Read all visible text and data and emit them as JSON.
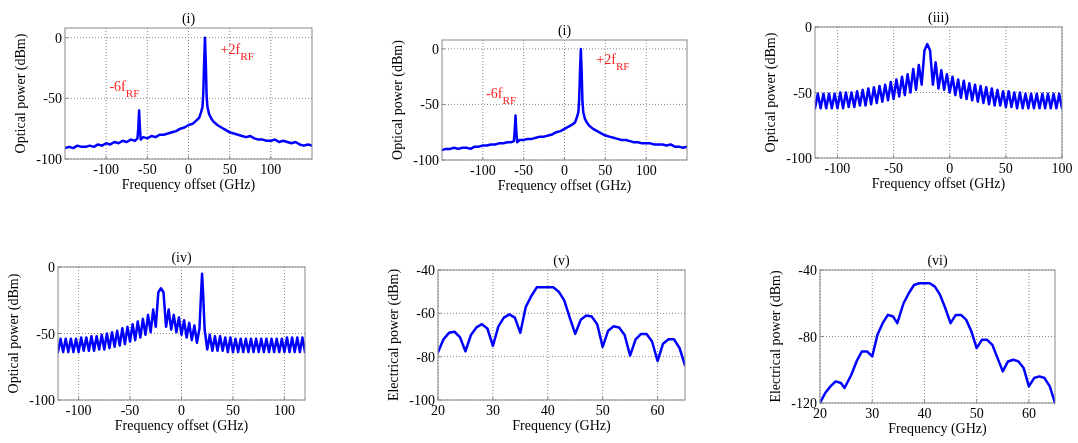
{
  "chart_data": [
    {
      "type": "line",
      "title": "(i)",
      "xlabel": "Frequency offset (GHz)",
      "ylabel": "Optical power (dBm)",
      "xlim": [
        -150,
        150
      ],
      "ylim": [
        -100,
        8
      ],
      "xticks": [
        -100,
        -50,
        0,
        50,
        100
      ],
      "yticks": [
        -100,
        -50,
        0
      ],
      "grid": true,
      "annotations": [
        "-6f$_{RF}$",
        "+2f$_{RF}$"
      ],
      "series": [
        {
          "color": "#0000ff",
          "x": [
            -150,
            -145,
            -140,
            -135,
            -130,
            -125,
            -120,
            -115,
            -110,
            -105,
            -100,
            -95,
            -90,
            -85,
            -80,
            -75,
            -70,
            -65,
            -62,
            -61,
            -60,
            -59,
            -58,
            -55,
            -50,
            -45,
            -40,
            -35,
            -30,
            -25,
            -20,
            -15,
            -10,
            -5,
            0,
            5,
            10,
            13,
            15,
            17,
            18,
            19,
            20,
            21,
            22,
            23,
            25,
            28,
            30,
            35,
            40,
            45,
            50,
            55,
            60,
            65,
            70,
            75,
            80,
            85,
            90,
            95,
            100,
            105,
            110,
            115,
            120,
            125,
            130,
            135,
            140,
            145,
            150
          ],
          "values": [
            -91,
            -90,
            -91,
            -89,
            -90,
            -90,
            -89,
            -90,
            -88,
            -89,
            -87,
            -88,
            -86,
            -87,
            -85,
            -86,
            -84,
            -85,
            -83,
            -75,
            -60,
            -75,
            -84,
            -82,
            -83,
            -81,
            -82,
            -80,
            -80,
            -79,
            -78,
            -77,
            -75,
            -74,
            -72,
            -71,
            -68,
            -66,
            -62,
            -57,
            -45,
            -20,
            0,
            -20,
            -48,
            -57,
            -63,
            -67,
            -69,
            -72,
            -74,
            -76,
            -78,
            -79,
            -80,
            -81,
            -82,
            -81,
            -83,
            -84,
            -84,
            -85,
            -85,
            -84,
            -86,
            -85,
            -86,
            -87,
            -86,
            -88,
            -89,
            -88,
            -89
          ]
        }
      ]
    },
    {
      "type": "line",
      "title": "(i)",
      "xlabel": "Frequency offset (GHz)",
      "ylabel": "Optical power (dBm)",
      "xlim": [
        -150,
        150
      ],
      "ylim": [
        -100,
        8
      ],
      "xticks": [
        -100,
        -50,
        0,
        50,
        100
      ],
      "yticks": [
        -100,
        -50,
        0
      ],
      "grid": true,
      "annotations": [
        "-6f$_{RF}$",
        "+2f$_{RF}$"
      ],
      "series": [
        {
          "color": "#0000ff",
          "x": [
            -150,
            -145,
            -140,
            -135,
            -130,
            -125,
            -120,
            -115,
            -110,
            -105,
            -100,
            -95,
            -90,
            -85,
            -80,
            -75,
            -70,
            -65,
            -62,
            -61,
            -60,
            -59,
            -58,
            -55,
            -50,
            -45,
            -40,
            -35,
            -30,
            -25,
            -20,
            -15,
            -10,
            -5,
            0,
            5,
            10,
            13,
            15,
            17,
            18,
            19,
            20,
            21,
            22,
            23,
            25,
            28,
            30,
            35,
            40,
            45,
            50,
            55,
            60,
            65,
            70,
            75,
            80,
            85,
            90,
            95,
            100,
            105,
            110,
            115,
            120,
            125,
            130,
            135,
            140,
            145,
            150
          ],
          "values": [
            -91,
            -90,
            -90,
            -89,
            -90,
            -89,
            -89,
            -90,
            -88,
            -88,
            -87,
            -87,
            -86,
            -86,
            -85,
            -85,
            -84,
            -84,
            -83,
            -74,
            -60,
            -74,
            -84,
            -82,
            -82,
            -81,
            -81,
            -80,
            -79,
            -79,
            -78,
            -77,
            -75,
            -74,
            -72,
            -70,
            -68,
            -66,
            -62,
            -57,
            -45,
            -20,
            0,
            -20,
            -48,
            -57,
            -63,
            -67,
            -69,
            -72,
            -74,
            -76,
            -78,
            -79,
            -80,
            -81,
            -82,
            -82,
            -83,
            -84,
            -84,
            -85,
            -85,
            -85,
            -86,
            -86,
            -86,
            -87,
            -86,
            -88,
            -88,
            -89,
            -88
          ]
        }
      ]
    },
    {
      "type": "line",
      "title": "(iii)",
      "xlabel": "Frequency offset (GHz)",
      "ylabel": "Optical power (dBm)",
      "xlim": [
        -120,
        100
      ],
      "ylim": [
        -100,
        0
      ],
      "xticks": [
        -100,
        -50,
        0,
        50,
        100
      ],
      "yticks": [
        -100,
        -50,
        0
      ],
      "grid": true,
      "series": [
        {
          "color": "#0000ff",
          "x": [
            -120,
            -117.5,
            -115,
            -112.5,
            -110,
            -107.5,
            -105,
            -102.5,
            -100,
            -97.5,
            -95,
            -92.5,
            -90,
            -87.5,
            -85,
            -82.5,
            -80,
            -77.5,
            -75,
            -72.5,
            -70,
            -67.5,
            -65,
            -62.5,
            -60,
            -57.5,
            -55,
            -52.5,
            -50,
            -47.5,
            -45,
            -42.5,
            -40,
            -37.5,
            -35,
            -32.5,
            -30,
            -27.5,
            -25,
            -22.5,
            -20,
            -17.5,
            -15,
            -12.5,
            -10,
            -7.5,
            -5,
            -2.5,
            0,
            2.5,
            5,
            7.5,
            10,
            12.5,
            15,
            17.5,
            20,
            22.5,
            25,
            27.5,
            30,
            32.5,
            35,
            37.5,
            40,
            42.5,
            45,
            47.5,
            50,
            52.5,
            55,
            57.5,
            60,
            62.5,
            65,
            67.5,
            70,
            72.5,
            75,
            77.5,
            80,
            82.5,
            85,
            87.5,
            90,
            92.5,
            95,
            97.5,
            100
          ],
          "values": [
            -62,
            -51,
            -62,
            -51,
            -62,
            -51,
            -62,
            -51,
            -62,
            -50,
            -62,
            -50,
            -61,
            -50,
            -61,
            -49,
            -60,
            -48,
            -60,
            -47,
            -59,
            -46,
            -58,
            -45,
            -57,
            -44,
            -56,
            -42,
            -55,
            -40,
            -53,
            -38,
            -52,
            -36,
            -50,
            -32,
            -48,
            -29,
            -44,
            -18,
            -13,
            -18,
            -44,
            -27,
            -47,
            -33,
            -48,
            -36,
            -50,
            -38,
            -52,
            -40,
            -54,
            -41,
            -55,
            -43,
            -56,
            -44,
            -57,
            -45,
            -58,
            -46,
            -59,
            -47,
            -60,
            -48,
            -60,
            -49,
            -61,
            -49,
            -61,
            -50,
            -62,
            -50,
            -62,
            -51,
            -62,
            -51,
            -62,
            -51,
            -62,
            -51,
            -62,
            -51,
            -62,
            -51,
            -62,
            -51,
            -62
          ]
        }
      ]
    },
    {
      "type": "line",
      "title": "(iv)",
      "xlabel": "Frequency offset (GHz)",
      "ylabel": "Optical power (dBm)",
      "xlim": [
        -120,
        120
      ],
      "ylim": [
        -100,
        0
      ],
      "xticks": [
        -100,
        -50,
        0,
        50,
        100
      ],
      "yticks": [
        -100,
        -50,
        0
      ],
      "grid": true,
      "series": [
        {
          "color": "#0000ff",
          "x": [
            -120,
            -117.5,
            -115,
            -112.5,
            -110,
            -107.5,
            -105,
            -102.5,
            -100,
            -97.5,
            -95,
            -92.5,
            -90,
            -87.5,
            -85,
            -82.5,
            -80,
            -77.5,
            -75,
            -72.5,
            -70,
            -67.5,
            -65,
            -62.5,
            -60,
            -57.5,
            -55,
            -52.5,
            -50,
            -47.5,
            -45,
            -42.5,
            -40,
            -37.5,
            -35,
            -32.5,
            -30,
            -27.5,
            -25,
            -22.5,
            -20,
            -17.5,
            -15,
            -12.5,
            -10,
            -7.5,
            -5,
            -2.5,
            0,
            2.5,
            5,
            7.5,
            10,
            12.5,
            15,
            17.5,
            19,
            20,
            21,
            22.5,
            25,
            27.5,
            30,
            32.5,
            35,
            37.5,
            40,
            42.5,
            45,
            47.5,
            50,
            52.5,
            55,
            57.5,
            60,
            62.5,
            65,
            67.5,
            70,
            72.5,
            75,
            77.5,
            80,
            82.5,
            85,
            87.5,
            90,
            92.5,
            95,
            97.5,
            100,
            102.5,
            105,
            107.5,
            110,
            112.5,
            115,
            117.5,
            120
          ],
          "values": [
            -64,
            -54,
            -64,
            -54,
            -64,
            -54,
            -64,
            -54,
            -64,
            -53,
            -63,
            -53,
            -63,
            -52,
            -63,
            -52,
            -62,
            -51,
            -62,
            -50,
            -61,
            -49,
            -60,
            -48,
            -59,
            -46,
            -58,
            -45,
            -56,
            -43,
            -55,
            -41,
            -53,
            -39,
            -51,
            -36,
            -49,
            -32,
            -45,
            -19,
            -16,
            -19,
            -45,
            -32,
            -47,
            -36,
            -49,
            -38,
            -51,
            -40,
            -53,
            -42,
            -55,
            -44,
            -57,
            -46,
            -20,
            -5,
            -20,
            -47,
            -62,
            -51,
            -63,
            -52,
            -63,
            -52,
            -63,
            -53,
            -64,
            -53,
            -64,
            -54,
            -64,
            -54,
            -64,
            -54,
            -64,
            -54,
            -64,
            -54,
            -64,
            -54,
            -64,
            -54,
            -64,
            -54,
            -64,
            -54,
            -64,
            -54,
            -64,
            -53,
            -64,
            -53,
            -64,
            -53,
            -64,
            -53,
            -64
          ]
        }
      ]
    },
    {
      "type": "line",
      "title": "(v)",
      "xlabel": "Frequency (GHz)",
      "ylabel": "Electrical power (dBm)",
      "xlim": [
        20,
        65
      ],
      "ylim": [
        -100,
        -40
      ],
      "xticks": [
        20,
        30,
        40,
        50,
        60
      ],
      "yticks": [
        -100,
        -80,
        -60,
        -40
      ],
      "grid": true,
      "series": [
        {
          "color": "#0000ff",
          "x": [
            20,
            21,
            22,
            23,
            24,
            25,
            26,
            27,
            28,
            29,
            30,
            31,
            32,
            33,
            34,
            35,
            36,
            37,
            38,
            39,
            40,
            41,
            42,
            43,
            44,
            45,
            46,
            47,
            48,
            49,
            50,
            51,
            52,
            53,
            54,
            55,
            56,
            57,
            58,
            59,
            60,
            61,
            62,
            63,
            64,
            65
          ],
          "values": [
            -78,
            -72,
            -69,
            -68.5,
            -71,
            -77.5,
            -70,
            -66.5,
            -65,
            -67,
            -75,
            -66,
            -62,
            -60.5,
            -62,
            -69,
            -57,
            -52,
            -48,
            -48,
            -48,
            -48,
            -50,
            -54,
            -62,
            -69.5,
            -63,
            -61,
            -61.5,
            -65,
            -75.5,
            -68,
            -66,
            -66.5,
            -70,
            -79.5,
            -72,
            -69.5,
            -69.5,
            -73,
            -82,
            -74,
            -72,
            -72,
            -76,
            -84
          ]
        }
      ]
    },
    {
      "type": "line",
      "title": "(vi)",
      "xlabel": "Frequency (GHz)",
      "ylabel": "Electrical power (dBm)",
      "xlim": [
        20,
        65
      ],
      "ylim": [
        -120,
        -40
      ],
      "xticks": [
        20,
        30,
        40,
        50,
        60
      ],
      "yticks": [
        -120,
        -80,
        -40
      ],
      "grid": true,
      "series": [
        {
          "color": "#0000ff",
          "x": [
            20,
            21,
            22,
            23,
            24,
            24.7,
            26,
            27,
            28,
            29,
            30,
            31,
            32,
            33,
            34,
            34.8,
            36,
            37,
            38,
            39,
            40,
            41,
            42,
            43,
            44,
            45,
            46,
            47,
            48,
            49,
            50,
            51,
            52,
            53,
            54,
            55,
            56,
            57,
            58,
            59,
            60,
            61,
            62,
            63,
            64,
            65
          ],
          "values": [
            -120,
            -114,
            -110,
            -107,
            -108,
            -111,
            -103,
            -95,
            -89,
            -89,
            -92,
            -79,
            -72,
            -67,
            -68,
            -72,
            -60,
            -54,
            -49,
            -48,
            -48,
            -48,
            -50,
            -55,
            -63,
            -72,
            -67,
            -67,
            -70,
            -77,
            -87,
            -82,
            -82,
            -85,
            -93,
            -101,
            -95,
            -94,
            -95,
            -99,
            -110,
            -105,
            -104,
            -105,
            -110,
            -120
          ]
        }
      ]
    }
  ]
}
